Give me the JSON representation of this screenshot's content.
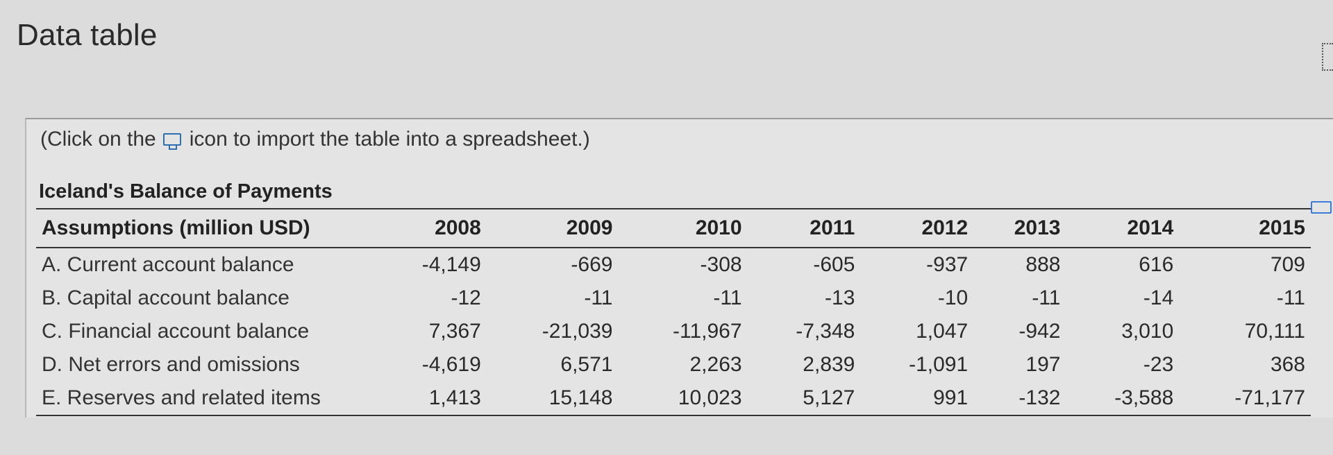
{
  "page": {
    "title": "Data table"
  },
  "panel": {
    "hint_prefix": "(Click on the",
    "hint_suffix": "icon to import the table into a spreadsheet.)",
    "table_title": "Iceland's Balance of Payments",
    "icons": {
      "import": "import-spreadsheet-icon",
      "corner": "spreadsheet-icon"
    }
  },
  "table": {
    "header": [
      "Assumptions (million USD)",
      "2008",
      "2009",
      "2010",
      "2011",
      "2012",
      "2013",
      "2014",
      "2015"
    ],
    "rows": [
      [
        "A. Current account balance",
        "-4,149",
        "-669",
        "-308",
        "-605",
        "-937",
        "888",
        "616",
        "709"
      ],
      [
        "B. Capital account balance",
        "-12",
        "-11",
        "-11",
        "-13",
        "-10",
        "-11",
        "-14",
        "-11"
      ],
      [
        "C. Financial account balance",
        "7,367",
        "-21,039",
        "-11,967",
        "-7,348",
        "1,047",
        "-942",
        "3,010",
        "70,111"
      ],
      [
        "D. Net errors and omissions",
        "-4,619",
        "6,571",
        "2,263",
        "2,839",
        "-1,091",
        "197",
        "-23",
        "368"
      ],
      [
        "E. Reserves and related items",
        "1,413",
        "15,148",
        "10,023",
        "5,127",
        "991",
        "-132",
        "-3,588",
        "-71,177"
      ]
    ]
  }
}
